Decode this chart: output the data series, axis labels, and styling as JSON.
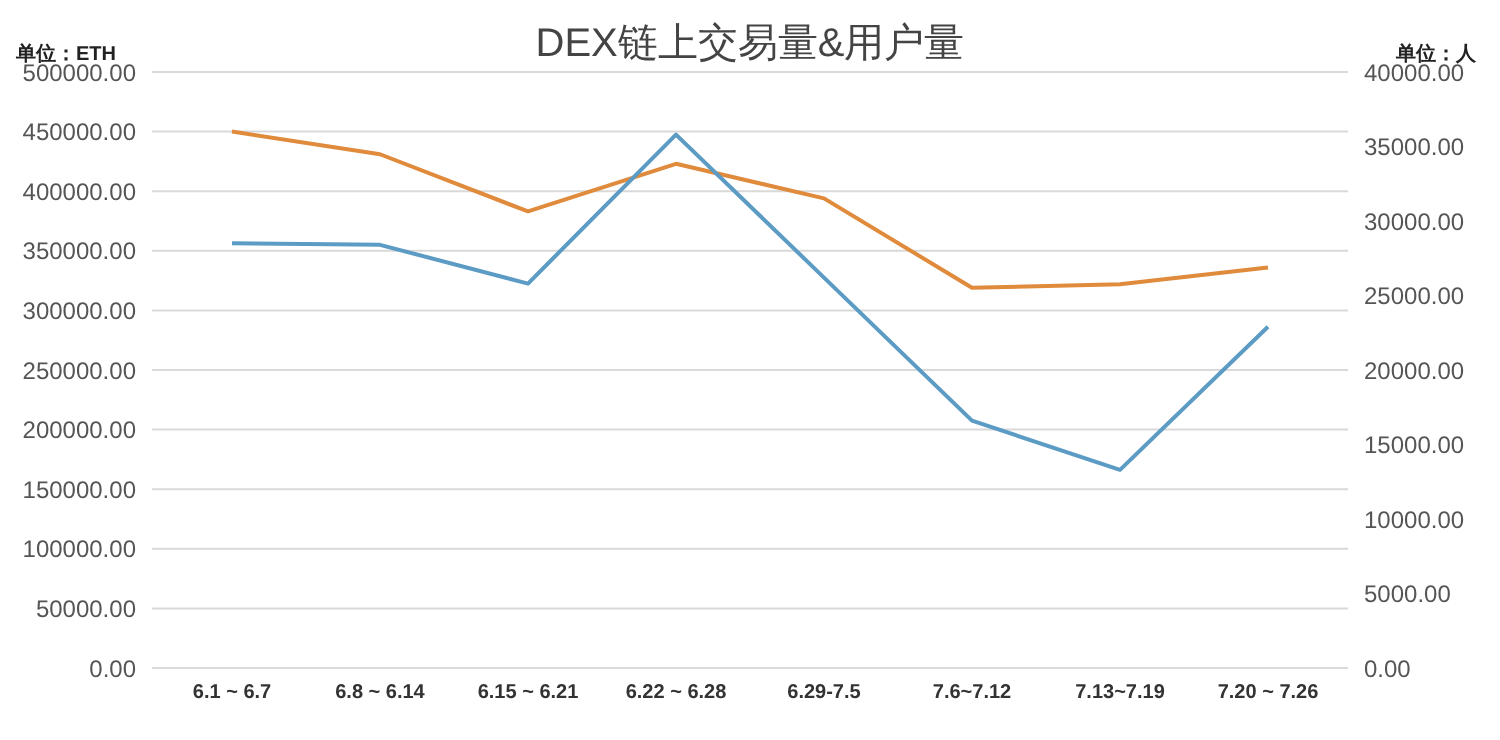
{
  "chart_data": {
    "type": "line",
    "title": "DEX链上交易量&用户量",
    "ylabel": "单位：ETH",
    "y2label": "单位：人",
    "categories": [
      "6.1 ~ 6.7",
      "6.8 ~ 6.14",
      "6.15 ~ 6.21",
      "6.22 ~ 6.28",
      "6.29-7.5",
      "7.6~7.12",
      "7.13~7.19",
      "7.20 ~ 7.26"
    ],
    "series": [
      {
        "color": "#e08a3c",
        "values": [
          450000,
          431000,
          383000,
          423000,
          394000,
          319000,
          322000,
          336000
        ]
      },
      {
        "color": "#5b9bc4",
        "axis": "y2",
        "values": [
          28500,
          28400,
          25800,
          35800,
          26200,
          16600,
          13300,
          22900
        ]
      }
    ],
    "ylim": [
      0,
      500000
    ],
    "yticks": [
      {
        "value": 0,
        "label": "0.00"
      },
      {
        "value": 50000,
        "label": "50000.00"
      },
      {
        "value": 100000,
        "label": "100000.00"
      },
      {
        "value": 150000,
        "label": "150000.00"
      },
      {
        "value": 200000,
        "label": "200000.00"
      },
      {
        "value": 250000,
        "label": "250000.00"
      },
      {
        "value": 300000,
        "label": "300000.00"
      },
      {
        "value": 350000,
        "label": "350000.00"
      },
      {
        "value": 400000,
        "label": "400000.00"
      },
      {
        "value": 450000,
        "label": "450000.00"
      },
      {
        "value": 500000,
        "label": "500000.00"
      }
    ],
    "y2lim": [
      0,
      40000
    ],
    "y2ticks": [
      {
        "value": 0,
        "label": "0.00"
      },
      {
        "value": 5000,
        "label": "5000.00"
      },
      {
        "value": 10000,
        "label": "10000.00"
      },
      {
        "value": 15000,
        "label": "15000.00"
      },
      {
        "value": 20000,
        "label": "20000.00"
      },
      {
        "value": 25000,
        "label": "25000.00"
      },
      {
        "value": 30000,
        "label": "30000.00"
      },
      {
        "value": 35000,
        "label": "35000.00"
      },
      {
        "value": 40000,
        "label": "40000.00"
      }
    ],
    "grid": "y",
    "marker": "none",
    "line_style": "solid"
  }
}
